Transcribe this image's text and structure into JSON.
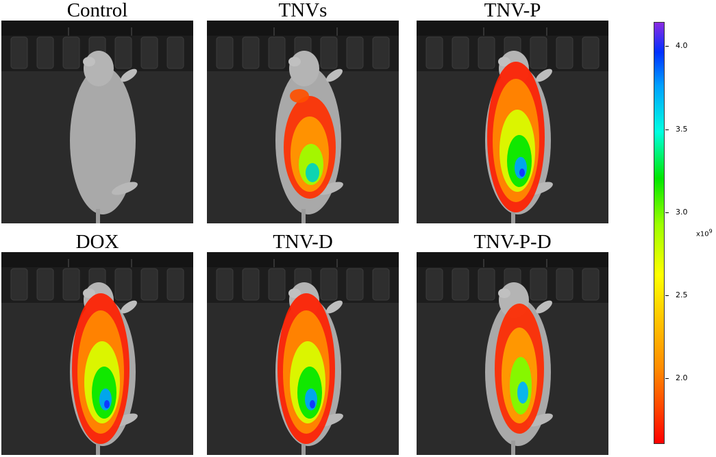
{
  "panels": [
    {
      "label": "Control",
      "signal": "none"
    },
    {
      "label": "TNVs",
      "signal": "low"
    },
    {
      "label": "TNV-P",
      "signal": "high"
    },
    {
      "label": "DOX",
      "signal": "high"
    },
    {
      "label": "TNV-D",
      "signal": "high"
    },
    {
      "label": "TNV-P-D",
      "signal": "medium"
    }
  ],
  "colorbar": {
    "ticks": [
      "4.0",
      "3.5",
      "3.0",
      "2.5",
      "2.0"
    ],
    "scale_base": "x10",
    "scale_exp": "9",
    "colors": [
      "#ff0000",
      "#ffc800",
      "#ffff00",
      "#00e600",
      "#00a0ff",
      "#8a2be2"
    ]
  }
}
